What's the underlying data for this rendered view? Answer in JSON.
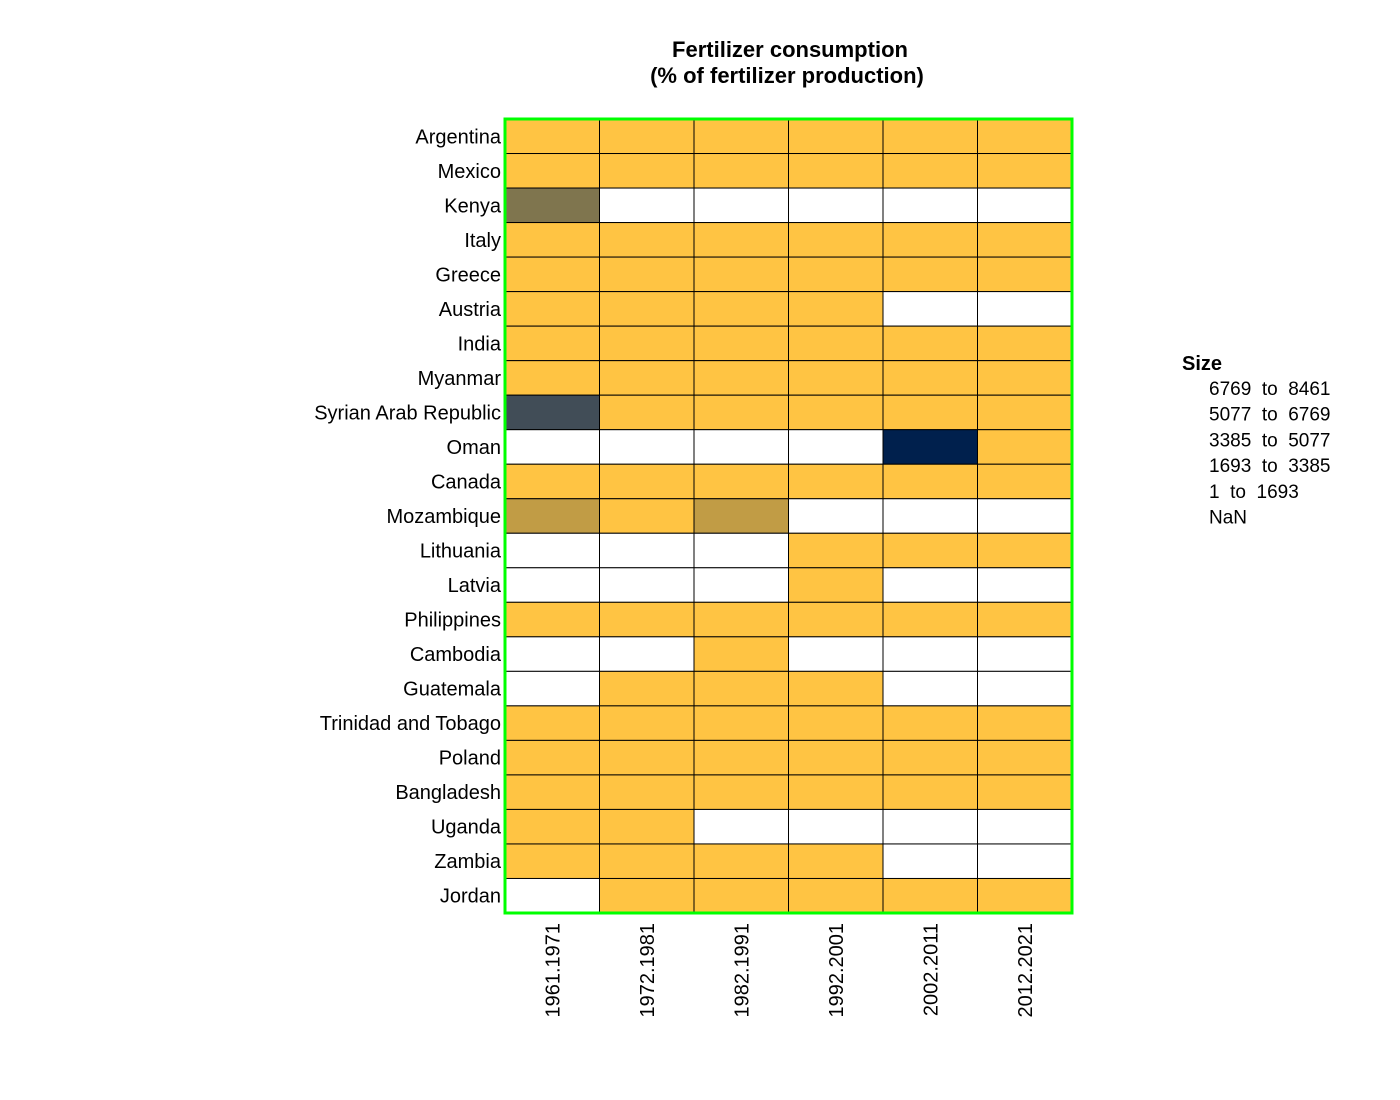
{
  "chart_data": {
    "type": "heatmap",
    "title": "Fertilizer consumption",
    "subtitle": "(% of fertilizer production)",
    "x": [
      "1961.1971",
      "1972.1981",
      "1982.1991",
      "1992.2001",
      "2002.2011",
      "2012.2021"
    ],
    "y": [
      "Argentina",
      "Mexico",
      "Kenya",
      "Italy",
      "Greece",
      "Austria",
      "India",
      "Myanmar",
      "Syrian Arab Republic",
      "Oman",
      "Canada",
      "Mozambique",
      "Lithuania",
      "Latvia",
      "Philippines",
      "Cambodia",
      "Guatemala",
      "Trinidad and Tobago",
      "Poland",
      "Bangladesh",
      "Uganda",
      "Zambia",
      "Jordan"
    ],
    "bins": [
      {
        "label": "6769  to  8461",
        "color": "#00204d"
      },
      {
        "label": "5077  to  6769",
        "color": "#414d57"
      },
      {
        "label": "3385  to  5077",
        "color": "#7f754e"
      },
      {
        "label": "1693  to  3385",
        "color": "#c19c45"
      },
      {
        "label": "1  to  1693",
        "color": "#ffc443"
      },
      {
        "label": "NaN",
        "color": "#ffffff"
      }
    ],
    "cells": [
      [
        4,
        4,
        4,
        4,
        4,
        4
      ],
      [
        4,
        4,
        4,
        4,
        4,
        4
      ],
      [
        2,
        5,
        5,
        5,
        5,
        5
      ],
      [
        4,
        4,
        4,
        4,
        4,
        4
      ],
      [
        4,
        4,
        4,
        4,
        4,
        4
      ],
      [
        4,
        4,
        4,
        4,
        5,
        5
      ],
      [
        4,
        4,
        4,
        4,
        4,
        4
      ],
      [
        4,
        4,
        4,
        4,
        4,
        4
      ],
      [
        1,
        4,
        4,
        4,
        4,
        4
      ],
      [
        5,
        5,
        5,
        5,
        0,
        4
      ],
      [
        4,
        4,
        4,
        4,
        4,
        4
      ],
      [
        3,
        4,
        3,
        5,
        5,
        5
      ],
      [
        5,
        5,
        5,
        4,
        4,
        4
      ],
      [
        5,
        5,
        5,
        4,
        5,
        5
      ],
      [
        4,
        4,
        4,
        4,
        4,
        4
      ],
      [
        5,
        5,
        4,
        5,
        5,
        5
      ],
      [
        5,
        4,
        4,
        4,
        5,
        5
      ],
      [
        4,
        4,
        4,
        4,
        4,
        4
      ],
      [
        4,
        4,
        4,
        4,
        4,
        4
      ],
      [
        4,
        4,
        4,
        4,
        4,
        4
      ],
      [
        4,
        4,
        5,
        5,
        5,
        5
      ],
      [
        4,
        4,
        4,
        4,
        5,
        5
      ],
      [
        5,
        4,
        4,
        4,
        4,
        4
      ]
    ],
    "legend": {
      "title": "Size",
      "placement": "right"
    },
    "colors": {
      "plot_border": "#00ff00",
      "cell_border": "#000000"
    }
  }
}
